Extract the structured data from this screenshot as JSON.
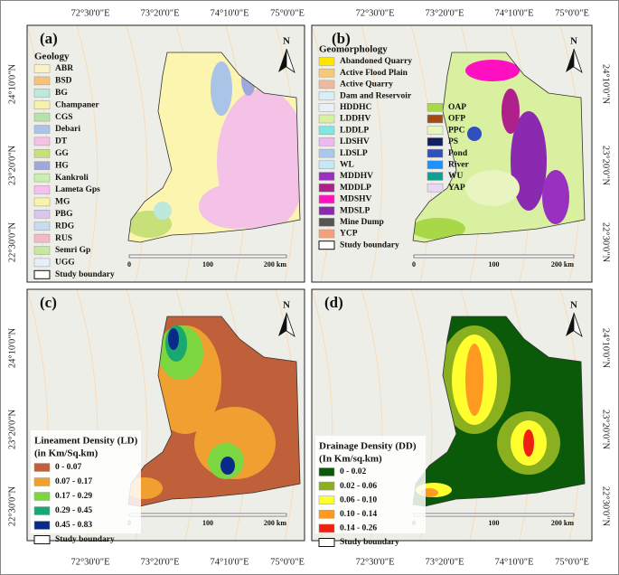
{
  "frame": {
    "top": [
      "72°30'0\"E",
      "73°20'0\"E",
      "74°10'0\"E",
      "75°0'0\"E"
    ],
    "bottom": [
      "72°30'0\"E",
      "73°20'0\"E",
      "74°10'0\"E",
      "75°0'0\"E"
    ],
    "left": [
      "24°10'0\"N",
      "23°20'0\"N",
      "22°30'0\"N"
    ],
    "right": [
      "24°10'0\"N",
      "23°20'0\"N",
      "22°30'0\"N"
    ]
  },
  "panels": [
    {
      "label": "(a)",
      "title": [
        "Geology"
      ],
      "north": "N",
      "scale": [
        "0",
        "100",
        "200 km"
      ],
      "boundary": "Study boundary",
      "legend": [
        [
          {
            "name": "ABR",
            "color": "#f7f3c4"
          },
          {
            "name": "BSD",
            "color": "#f5c27a"
          },
          {
            "name": "BG",
            "color": "#bde8dc"
          },
          {
            "name": "Champaner",
            "color": "#f5f2b0"
          },
          {
            "name": "CGS",
            "color": "#b6e3a8"
          },
          {
            "name": "Debari",
            "color": "#aac4e8"
          },
          {
            "name": "DT",
            "color": "#f3c2e6"
          },
          {
            "name": "GG",
            "color": "#c8e07a"
          },
          {
            "name": "HG",
            "color": "#9fa8dc"
          },
          {
            "name": "Kankroli",
            "color": "#c9f0b0"
          },
          {
            "name": "Lameta Gps",
            "color": "#f5c0ef"
          },
          {
            "name": "MG",
            "color": "#fbf3a8"
          },
          {
            "name": "PBG",
            "color": "#d9c8ee"
          },
          {
            "name": "RDG",
            "color": "#c8dcf0"
          },
          {
            "name": "RUS",
            "color": "#f5b8c8"
          },
          {
            "name": "Semri Gp",
            "color": "#c8e8a0"
          },
          {
            "name": "UGG",
            "color": "#e8eef8"
          }
        ]
      ]
    },
    {
      "label": "(b)",
      "title": [
        "Geomorphology"
      ],
      "north": "N",
      "scale": [
        "0",
        "100",
        "200 km"
      ],
      "boundary": "Study boundary",
      "legend": [
        [
          {
            "name": "Abandoned Quarry",
            "color": "#ffe600"
          },
          {
            "name": "Active Flood Plain",
            "color": "#f5c87a"
          },
          {
            "name": "Active Quarry",
            "color": "#f0b8a0"
          },
          {
            "name": "Dam and Reservoir",
            "color": "#d8eef8"
          },
          {
            "name": "HDDHC",
            "color": "#e8f0f8"
          },
          {
            "name": "LDDHV",
            "color": "#d8f0a0"
          },
          {
            "name": "LDDLP",
            "color": "#7ee8e0"
          },
          {
            "name": "LDSHV",
            "color": "#f0b8f0"
          },
          {
            "name": "LDSLP",
            "color": "#a8c8f0"
          },
          {
            "name": "WL",
            "color": "#c8e8f8"
          },
          {
            "name": "MDDHV",
            "color": "#9a30c0"
          },
          {
            "name": "MDDLP",
            "color": "#b0208a"
          },
          {
            "name": "MDSHV",
            "color": "#ff10c0"
          },
          {
            "name": "MDSLP",
            "color": "#8a2ab0"
          },
          {
            "name": "Mine Dump",
            "color": "#555555"
          },
          {
            "name": "YCP",
            "color": "#f5a07a"
          }
        ],
        [
          {
            "name": "OAP",
            "color": "#a8d848"
          },
          {
            "name": "OFP",
            "color": "#a04a1a"
          },
          {
            "name": "PPC",
            "color": "#e8f5c0"
          },
          {
            "name": "PS",
            "color": "#102060"
          },
          {
            "name": "Pond",
            "color": "#3050c0"
          },
          {
            "name": "River",
            "color": "#2090ff"
          },
          {
            "name": "WU",
            "color": "#10a090"
          },
          {
            "name": "YAP",
            "color": "#e8d8f5"
          }
        ]
      ]
    },
    {
      "label": "(c)",
      "title": [
        "Lineament Density (LD)",
        "(in Km/Sq.km)"
      ],
      "north": "N",
      "scale": [
        "0",
        "100",
        "200 km"
      ],
      "boundary": "Study boundary",
      "legend": [
        [
          {
            "name": "0 - 0.07",
            "color": "#c0603a"
          },
          {
            "name": "0.07 - 0.17",
            "color": "#f0a030"
          },
          {
            "name": "0.17 - 0.29",
            "color": "#7cd640"
          },
          {
            "name": "0.29 - 0.45",
            "color": "#18a870"
          },
          {
            "name": "0.45 - 0.83",
            "color": "#0a2a8a"
          }
        ]
      ]
    },
    {
      "label": "(d)",
      "title": [
        "Drainage Density (DD)",
        "(In Km/sq.km)"
      ],
      "north": "N",
      "scale": [
        "0",
        "100",
        "200 km"
      ],
      "boundary": "Study boundary",
      "legend": [
        [
          {
            "name": "0 - 0.02",
            "color": "#0a5a0a"
          },
          {
            "name": "0.02 - 0.06",
            "color": "#8ab020"
          },
          {
            "name": "0.06 - 0.10",
            "color": "#ffff30"
          },
          {
            "name": "0.10 - 0.14",
            "color": "#ff9a20"
          },
          {
            "name": "0.14 - 0.26",
            "color": "#f02010"
          }
        ]
      ]
    }
  ]
}
